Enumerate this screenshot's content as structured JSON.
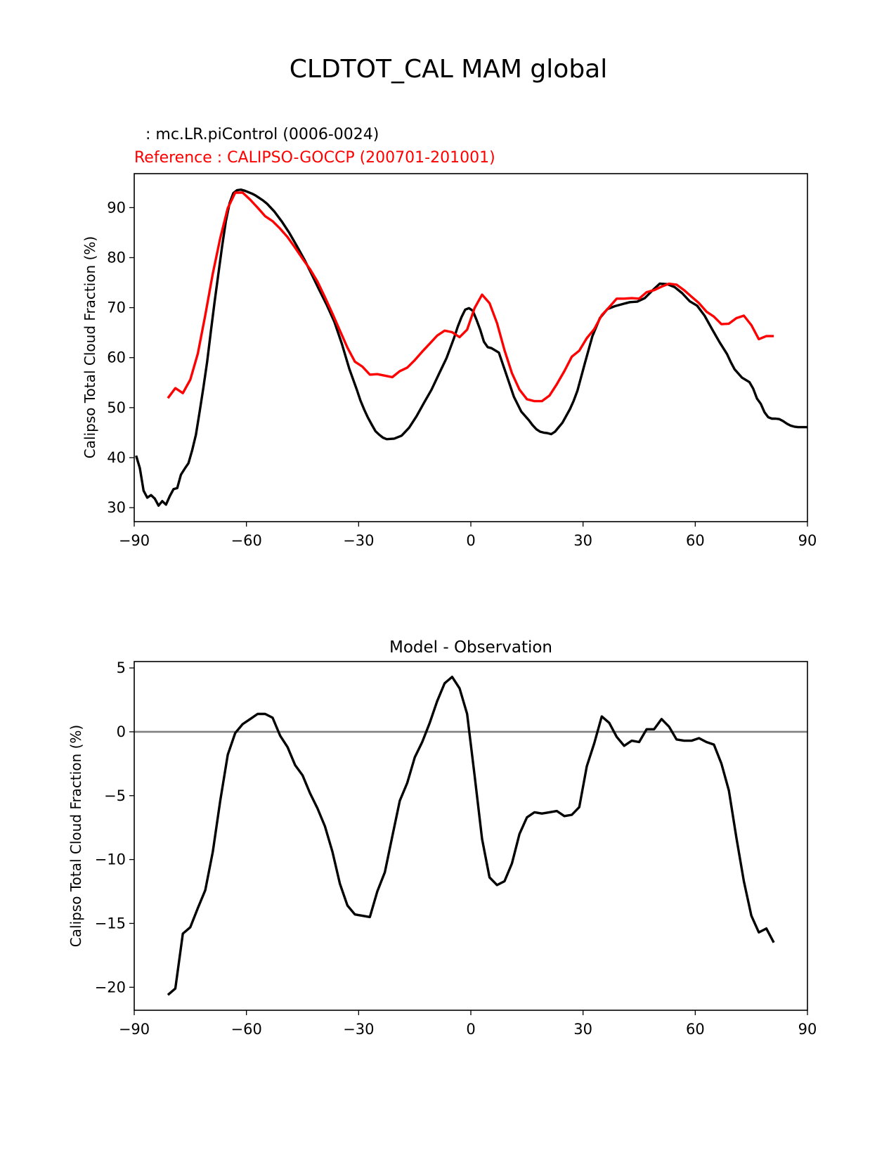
{
  "figure": {
    "title": "CLDTOT_CAL MAM global",
    "model_label": " : mc.LR.piControl (0006-0024)",
    "reference_label": "Reference : CALIPSO-GOCCP (200701-201001)"
  },
  "colors": {
    "model": "#000000",
    "reference": "#ff0000",
    "zero_line": "#808080",
    "text": "#000000"
  },
  "chart_data": [
    {
      "type": "line",
      "title": "",
      "xlabel": "",
      "ylabel": "Calipso Total Cloud Fraction (%)",
      "xlim": [
        -90,
        90
      ],
      "ylim": [
        27.2,
        96.8
      ],
      "xticks": [
        -90,
        -60,
        -30,
        0,
        30,
        60,
        90
      ],
      "yticks": [
        30,
        40,
        50,
        60,
        70,
        80,
        90
      ],
      "series": [
        {
          "name": "mc.LR.piControl (0006-0024)",
          "color": "#000000",
          "x": [
            -89.5,
            -88.5,
            -87.5,
            -86.5,
            -85.5,
            -84.5,
            -83.5,
            -82.5,
            -81.5,
            -80.5,
            -79.5,
            -78.5,
            -77.5,
            -76.5,
            -75.5,
            -74.5,
            -73.5,
            -72.5,
            -71.5,
            -70.5,
            -69.5,
            -68.5,
            -67.5,
            -66.5,
            -65.5,
            -64.5,
            -63.5,
            -62.5,
            -61.5,
            -60.5,
            -59.5,
            -58.5,
            -57.5,
            -56.5,
            -55.5,
            -54.5,
            -52.5,
            -50.5,
            -48.5,
            -46.5,
            -44.5,
            -42.5,
            -40.5,
            -38.5,
            -36.5,
            -34.5,
            -32.5,
            -30.5,
            -29.5,
            -28.5,
            -27.5,
            -26.5,
            -25.5,
            -24.5,
            -23.5,
            -22.5,
            -20.5,
            -18.5,
            -16.5,
            -14.5,
            -12.5,
            -10.5,
            -8.5,
            -6.5,
            -5.5,
            -4.5,
            -3.5,
            -2.5,
            -1.5,
            -0.5,
            0.5,
            1.5,
            2.5,
            3.5,
            4.5,
            5.5,
            7.5,
            9.5,
            11.5,
            13.5,
            15.5,
            16.5,
            17.5,
            18.5,
            19.5,
            20.5,
            21.5,
            22.5,
            24.5,
            26.5,
            27.5,
            28.5,
            30.5,
            32.5,
            34.5,
            36.5,
            38.5,
            40.5,
            42.5,
            44.5,
            46.5,
            48.5,
            50.5,
            52.5,
            54.5,
            56.5,
            58.5,
            60.5,
            62.5,
            64.5,
            66.5,
            68.5,
            69.5,
            70.5,
            72.5,
            74.5,
            75.5,
            76.5,
            77.5,
            78.5,
            79.5,
            80.5,
            81.5,
            82.5,
            83.5,
            84.5,
            85.5,
            86.5,
            87.5,
            88.5,
            89.5,
            90
          ],
          "y": [
            40.4,
            37.9,
            33.4,
            32.0,
            32.5,
            31.8,
            30.4,
            31.3,
            30.6,
            32.3,
            33.7,
            33.9,
            36.6,
            37.8,
            38.9,
            41.5,
            44.6,
            49.2,
            54.1,
            59.2,
            65.3,
            71.2,
            76.8,
            82.3,
            87.3,
            90.9,
            92.9,
            93.5,
            93.6,
            93.4,
            93.1,
            92.8,
            92.4,
            91.9,
            91.4,
            90.8,
            89.2,
            87.2,
            84.9,
            82.3,
            79.6,
            76.6,
            73.5,
            70.5,
            67.2,
            62.8,
            57.8,
            53.6,
            51.4,
            49.6,
            48.0,
            46.6,
            45.3,
            44.6,
            44.0,
            43.7,
            43.8,
            44.4,
            46.0,
            48.3,
            51.0,
            53.6,
            56.8,
            59.9,
            61.9,
            63.9,
            66.2,
            68.1,
            69.6,
            69.9,
            69.4,
            67.6,
            65.6,
            63.2,
            62.1,
            61.9,
            61.0,
            56.6,
            52.2,
            49.2,
            47.5,
            46.5,
            45.7,
            45.2,
            45.0,
            44.9,
            44.7,
            45.2,
            47.0,
            49.7,
            51.4,
            53.4,
            58.9,
            64.3,
            67.9,
            69.7,
            70.3,
            70.7,
            71.1,
            71.2,
            71.9,
            73.4,
            74.8,
            74.7,
            74.1,
            72.9,
            71.3,
            70.4,
            68.4,
            65.7,
            63.1,
            60.7,
            59.1,
            57.7,
            56.0,
            55.1,
            53.8,
            51.8,
            50.8,
            49.1,
            48.1,
            47.8,
            47.8,
            47.7,
            47.3,
            46.8,
            46.4,
            46.2,
            46.1,
            46.1,
            46.1,
            46.1
          ]
        },
        {
          "name": "Reference : CALIPSO-GOCCP (200701-201001)",
          "color": "#ff0000",
          "x": [
            -81.0,
            -79.0,
            -77.0,
            -75.0,
            -73.0,
            -71.0,
            -69.0,
            -67.0,
            -65.0,
            -63.0,
            -61.0,
            -59.0,
            -57.0,
            -55.0,
            -53.0,
            -51.0,
            -49.0,
            -47.0,
            -45.0,
            -43.0,
            -41.0,
            -39.0,
            -37.0,
            -35.0,
            -33.0,
            -31.0,
            -29.0,
            -27.0,
            -25.0,
            -23.0,
            -21.0,
            -19.0,
            -17.0,
            -15.0,
            -13.0,
            -11.0,
            -9.0,
            -7.0,
            -5.0,
            -3.0,
            -1.0,
            1.0,
            3.0,
            5.0,
            7.0,
            9.0,
            11.0,
            13.0,
            15.0,
            17.0,
            19.0,
            21.0,
            23.0,
            25.0,
            27.0,
            29.0,
            31.0,
            33.0,
            35.0,
            37.0,
            39.0,
            41.0,
            43.0,
            45.0,
            47.0,
            49.0,
            51.0,
            53.0,
            55.0,
            57.0,
            59.0,
            61.0,
            63.0,
            65.0,
            67.0,
            69.0,
            71.0,
            73.0,
            75.0,
            77.0,
            79.0,
            81.0
          ],
          "y": [
            51.9,
            53.9,
            52.9,
            55.6,
            60.8,
            68.5,
            76.8,
            83.9,
            89.9,
            93.0,
            93.0,
            91.6,
            90.0,
            88.3,
            87.3,
            85.8,
            84.1,
            82.0,
            79.8,
            77.7,
            75.2,
            72.1,
            68.8,
            65.4,
            62.0,
            59.2,
            58.2,
            56.6,
            56.7,
            56.4,
            56.1,
            57.3,
            58.0,
            59.5,
            61.2,
            62.8,
            64.4,
            65.4,
            65.1,
            64.1,
            65.6,
            69.9,
            72.6,
            70.9,
            66.9,
            61.5,
            56.9,
            53.6,
            51.7,
            51.3,
            51.3,
            52.4,
            54.7,
            57.3,
            60.2,
            61.4,
            63.9,
            65.7,
            68.5,
            70.1,
            71.8,
            71.8,
            71.9,
            71.8,
            73.1,
            73.5,
            74.2,
            74.8,
            74.6,
            73.5,
            72.2,
            70.9,
            69.2,
            68.2,
            66.7,
            66.8,
            67.9,
            68.4,
            66.5,
            63.7,
            64.3,
            64.3
          ]
        }
      ]
    },
    {
      "type": "line",
      "title": "Model - Observation",
      "xlabel": "",
      "ylabel": "Calipso Total Cloud Fraction (%)",
      "xlim": [
        -90,
        90
      ],
      "ylim": [
        -21.8,
        5.5
      ],
      "xticks": [
        -90,
        -60,
        -30,
        0,
        30,
        60,
        90
      ],
      "yticks": [
        -20,
        -15,
        -10,
        -5,
        0,
        5
      ],
      "zero_line": 0,
      "series": [
        {
          "name": "Model - Observation",
          "color": "#000000",
          "x": [
            -81.0,
            -79.0,
            -77.0,
            -75.0,
            -73.0,
            -71.0,
            -69.0,
            -67.0,
            -65.0,
            -63.0,
            -61.0,
            -59.0,
            -57.0,
            -55.0,
            -53.0,
            -51.0,
            -49.0,
            -47.0,
            -45.0,
            -43.0,
            -41.0,
            -39.0,
            -37.0,
            -35.0,
            -33.0,
            -31.0,
            -29.0,
            -27.0,
            -25.0,
            -23.0,
            -21.0,
            -19.0,
            -17.0,
            -15.0,
            -13.0,
            -11.0,
            -9.0,
            -7.0,
            -5.0,
            -3.0,
            -1.0,
            1.0,
            3.0,
            5.0,
            7.0,
            9.0,
            11.0,
            13.0,
            15.0,
            17.0,
            19.0,
            21.0,
            23.0,
            25.0,
            27.0,
            29.0,
            31.0,
            33.0,
            35.0,
            37.0,
            39.0,
            41.0,
            43.0,
            45.0,
            47.0,
            49.0,
            51.0,
            53.0,
            55.0,
            57.0,
            59.0,
            61.0,
            63.0,
            65.0,
            67.0,
            69.0,
            71.0,
            73.0,
            75.0,
            77.0,
            79.0,
            81.0
          ],
          "y": [
            -20.6,
            -20.1,
            -15.8,
            -15.3,
            -13.8,
            -12.4,
            -9.4,
            -5.4,
            -1.8,
            -0.1,
            0.6,
            1.0,
            1.4,
            1.4,
            1.1,
            -0.3,
            -1.2,
            -2.6,
            -3.4,
            -4.8,
            -6.0,
            -7.4,
            -9.4,
            -11.9,
            -13.6,
            -14.3,
            -14.4,
            -14.5,
            -12.5,
            -11.0,
            -8.2,
            -5.4,
            -4.0,
            -2.0,
            -0.8,
            0.7,
            2.4,
            3.8,
            4.3,
            3.4,
            1.4,
            -3.4,
            -8.4,
            -11.4,
            -12.0,
            -11.7,
            -10.3,
            -8.0,
            -6.7,
            -6.3,
            -6.4,
            -6.3,
            -6.2,
            -6.6,
            -6.5,
            -5.9,
            -2.7,
            -0.9,
            1.2,
            0.7,
            -0.4,
            -1.1,
            -0.7,
            -0.8,
            0.2,
            0.2,
            1.0,
            0.4,
            -0.6,
            -0.7,
            -0.7,
            -0.5,
            -0.8,
            -1.0,
            -2.5,
            -4.6,
            -8.3,
            -11.7,
            -14.4,
            -15.7,
            -15.4,
            -16.5
          ]
        }
      ]
    }
  ]
}
